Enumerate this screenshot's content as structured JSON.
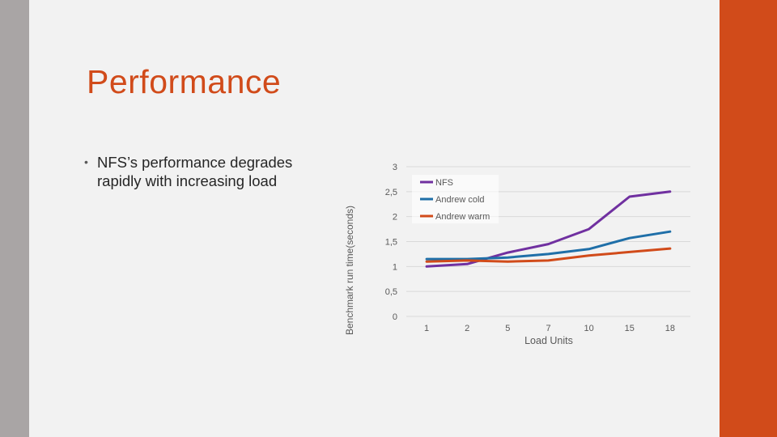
{
  "slide": {
    "title": "Performance",
    "bullets": [
      "NFS’s performance degrades rapidly with increasing load"
    ],
    "colors": {
      "accent": "#d14b1a",
      "left_bar": "#a9a5a5",
      "background": "#f2f2f2"
    }
  },
  "chart_data": {
    "type": "line",
    "title": "",
    "xlabel": "Load Units",
    "ylabel": "Benchmark run time(seconds)",
    "categories": [
      "1",
      "2",
      "5",
      "7",
      "10",
      "15",
      "18"
    ],
    "ylim": [
      0,
      3
    ],
    "yticks": [
      "0",
      "0,5",
      "1",
      "1,5",
      "2",
      "2,5",
      "3"
    ],
    "grid": true,
    "legend_position": "top-left",
    "series": [
      {
        "name": "NFS",
        "color": "#7030a0",
        "values": [
          1.0,
          1.05,
          1.28,
          1.45,
          1.75,
          2.4,
          2.5
        ]
      },
      {
        "name": "Andrew cold",
        "color": "#1f6fa8",
        "values": [
          1.15,
          1.15,
          1.18,
          1.25,
          1.35,
          1.57,
          1.7
        ]
      },
      {
        "name": "Andrew warm",
        "color": "#d14b1a",
        "values": [
          1.1,
          1.12,
          1.1,
          1.12,
          1.22,
          1.29,
          1.36
        ]
      }
    ]
  }
}
